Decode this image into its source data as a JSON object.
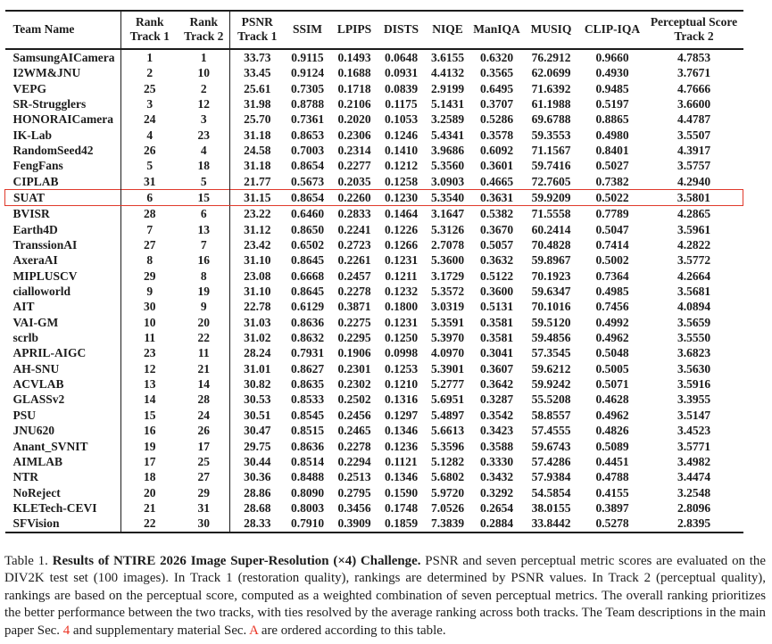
{
  "colors": {
    "highlight_red": "#e03a2c",
    "link_red": "#ea3323",
    "text": "#1c1c1c"
  },
  "table": {
    "header": {
      "team": "Team Name",
      "cols": [
        {
          "line1": "Rank",
          "line2": "Track 1"
        },
        {
          "line1": "Rank",
          "line2": "Track 2"
        },
        {
          "line1": "PSNR",
          "line2": "Track 1"
        },
        {
          "line1": "SSIM",
          "line2": ""
        },
        {
          "line1": "LPIPS",
          "line2": ""
        },
        {
          "line1": "DISTS",
          "line2": ""
        },
        {
          "line1": "NIQE",
          "line2": ""
        },
        {
          "line1": "ManIQA",
          "line2": ""
        },
        {
          "line1": "MUSIQ",
          "line2": ""
        },
        {
          "line1": "CLIP-IQA",
          "line2": ""
        },
        {
          "line1": "Perceptual Score",
          "line2": "Track 2"
        }
      ]
    },
    "rows": [
      {
        "team": "SamsungAICamera",
        "highlight": false,
        "values": [
          "1",
          "1",
          "33.73",
          "0.9115",
          "0.1493",
          "0.0648",
          "3.6155",
          "0.6320",
          "76.2912",
          "0.9660",
          "4.7853"
        ]
      },
      {
        "team": "I2WM&JNU",
        "highlight": false,
        "values": [
          "2",
          "10",
          "33.45",
          "0.9124",
          "0.1688",
          "0.0931",
          "4.4132",
          "0.3565",
          "62.0699",
          "0.4930",
          "3.7671"
        ]
      },
      {
        "team": "VEPG",
        "highlight": false,
        "values": [
          "25",
          "2",
          "25.61",
          "0.7305",
          "0.1718",
          "0.0839",
          "2.9199",
          "0.6495",
          "71.6392",
          "0.9485",
          "4.7666"
        ]
      },
      {
        "team": "SR-Strugglers",
        "highlight": false,
        "values": [
          "3",
          "12",
          "31.98",
          "0.8788",
          "0.2106",
          "0.1175",
          "5.1431",
          "0.3707",
          "61.1988",
          "0.5197",
          "3.6600"
        ]
      },
      {
        "team": "HONORAICamera",
        "highlight": false,
        "values": [
          "24",
          "3",
          "25.70",
          "0.7361",
          "0.2020",
          "0.1053",
          "3.2589",
          "0.5286",
          "69.6788",
          "0.8865",
          "4.4787"
        ]
      },
      {
        "team": "IK-Lab",
        "highlight": false,
        "values": [
          "4",
          "23",
          "31.18",
          "0.8653",
          "0.2306",
          "0.1246",
          "5.4341",
          "0.3578",
          "59.3553",
          "0.4980",
          "3.5507"
        ]
      },
      {
        "team": "RandomSeed42",
        "highlight": false,
        "values": [
          "26",
          "4",
          "24.58",
          "0.7003",
          "0.2314",
          "0.1410",
          "3.9686",
          "0.6092",
          "71.1567",
          "0.8401",
          "4.3917"
        ]
      },
      {
        "team": "FengFans",
        "highlight": false,
        "values": [
          "5",
          "18",
          "31.18",
          "0.8654",
          "0.2277",
          "0.1212",
          "5.3560",
          "0.3601",
          "59.7416",
          "0.5027",
          "3.5757"
        ]
      },
      {
        "team": "CIPLAB",
        "highlight": false,
        "values": [
          "31",
          "5",
          "21.77",
          "0.5673",
          "0.2035",
          "0.1258",
          "3.0903",
          "0.4665",
          "72.7605",
          "0.7382",
          "4.2940"
        ]
      },
      {
        "team": "SUAT",
        "highlight": true,
        "values": [
          "6",
          "15",
          "31.15",
          "0.8654",
          "0.2260",
          "0.1230",
          "5.3540",
          "0.3631",
          "59.9209",
          "0.5022",
          "3.5801"
        ]
      },
      {
        "team": "BVISR",
        "highlight": false,
        "values": [
          "28",
          "6",
          "23.22",
          "0.6460",
          "0.2833",
          "0.1464",
          "3.1647",
          "0.5382",
          "71.5558",
          "0.7789",
          "4.2865"
        ]
      },
      {
        "team": "Earth4D",
        "highlight": false,
        "values": [
          "7",
          "13",
          "31.12",
          "0.8650",
          "0.2241",
          "0.1226",
          "5.3126",
          "0.3670",
          "60.2414",
          "0.5047",
          "3.5961"
        ]
      },
      {
        "team": "TranssionAI",
        "highlight": false,
        "values": [
          "27",
          "7",
          "23.42",
          "0.6502",
          "0.2723",
          "0.1266",
          "2.7078",
          "0.5057",
          "70.4828",
          "0.7414",
          "4.2822"
        ]
      },
      {
        "team": "AxeraAI",
        "highlight": false,
        "values": [
          "8",
          "16",
          "31.10",
          "0.8645",
          "0.2261",
          "0.1231",
          "5.3600",
          "0.3632",
          "59.8967",
          "0.5002",
          "3.5772"
        ]
      },
      {
        "team": "MIPLUSCV",
        "highlight": false,
        "values": [
          "29",
          "8",
          "23.08",
          "0.6668",
          "0.2457",
          "0.1211",
          "3.1729",
          "0.5122",
          "70.1923",
          "0.7364",
          "4.2664"
        ]
      },
      {
        "team": "cialloworld",
        "highlight": false,
        "values": [
          "9",
          "19",
          "31.10",
          "0.8645",
          "0.2278",
          "0.1232",
          "5.3572",
          "0.3600",
          "59.6347",
          "0.4985",
          "3.5681"
        ]
      },
      {
        "team": "AIT",
        "highlight": false,
        "values": [
          "30",
          "9",
          "22.78",
          "0.6129",
          "0.3871",
          "0.1800",
          "3.0319",
          "0.5131",
          "70.1016",
          "0.7456",
          "4.0894"
        ]
      },
      {
        "team": "VAI-GM",
        "highlight": false,
        "values": [
          "10",
          "20",
          "31.03",
          "0.8636",
          "0.2275",
          "0.1231",
          "5.3591",
          "0.3581",
          "59.5120",
          "0.4992",
          "3.5659"
        ]
      },
      {
        "team": "scrlb",
        "highlight": false,
        "values": [
          "11",
          "22",
          "31.02",
          "0.8632",
          "0.2295",
          "0.1250",
          "5.3970",
          "0.3581",
          "59.4856",
          "0.4962",
          "3.5550"
        ]
      },
      {
        "team": "APRIL-AIGC",
        "highlight": false,
        "values": [
          "23",
          "11",
          "28.24",
          "0.7931",
          "0.1906",
          "0.0998",
          "4.0970",
          "0.3041",
          "57.3545",
          "0.5048",
          "3.6823"
        ]
      },
      {
        "team": "AH-SNU",
        "highlight": false,
        "values": [
          "12",
          "21",
          "31.01",
          "0.8627",
          "0.2301",
          "0.1253",
          "5.3901",
          "0.3607",
          "59.6212",
          "0.5005",
          "3.5630"
        ]
      },
      {
        "team": "ACVLAB",
        "highlight": false,
        "values": [
          "13",
          "14",
          "30.82",
          "0.8635",
          "0.2302",
          "0.1210",
          "5.2777",
          "0.3642",
          "59.9242",
          "0.5071",
          "3.5916"
        ]
      },
      {
        "team": "GLASSv2",
        "highlight": false,
        "values": [
          "14",
          "28",
          "30.53",
          "0.8533",
          "0.2502",
          "0.1316",
          "5.6951",
          "0.3287",
          "55.5208",
          "0.4628",
          "3.3955"
        ]
      },
      {
        "team": "PSU",
        "highlight": false,
        "values": [
          "15",
          "24",
          "30.51",
          "0.8545",
          "0.2456",
          "0.1297",
          "5.4897",
          "0.3542",
          "58.8557",
          "0.4962",
          "3.5147"
        ]
      },
      {
        "team": "JNU620",
        "highlight": false,
        "values": [
          "16",
          "26",
          "30.47",
          "0.8515",
          "0.2465",
          "0.1346",
          "5.6613",
          "0.3423",
          "57.4555",
          "0.4826",
          "3.4523"
        ]
      },
      {
        "team": "Anant_SVNIT",
        "highlight": false,
        "values": [
          "19",
          "17",
          "29.75",
          "0.8636",
          "0.2278",
          "0.1236",
          "5.3596",
          "0.3588",
          "59.6743",
          "0.5089",
          "3.5771"
        ]
      },
      {
        "team": "AIMLAB",
        "highlight": false,
        "values": [
          "17",
          "25",
          "30.44",
          "0.8514",
          "0.2294",
          "0.1121",
          "5.1282",
          "0.3330",
          "57.4286",
          "0.4451",
          "3.4982"
        ]
      },
      {
        "team": "NTR",
        "highlight": false,
        "values": [
          "18",
          "27",
          "30.36",
          "0.8488",
          "0.2513",
          "0.1346",
          "5.6802",
          "0.3432",
          "57.9384",
          "0.4788",
          "3.4474"
        ]
      },
      {
        "team": "NoReject",
        "highlight": false,
        "values": [
          "20",
          "29",
          "28.86",
          "0.8090",
          "0.2795",
          "0.1590",
          "5.9720",
          "0.3292",
          "54.5854",
          "0.4155",
          "3.2548"
        ]
      },
      {
        "team": "KLETech-CEVI",
        "highlight": false,
        "values": [
          "21",
          "31",
          "28.68",
          "0.8003",
          "0.3456",
          "0.1748",
          "7.0526",
          "0.2654",
          "38.0155",
          "0.3897",
          "2.8096"
        ]
      },
      {
        "team": "SFVision",
        "highlight": false,
        "values": [
          "22",
          "30",
          "28.33",
          "0.7910",
          "0.3909",
          "0.1859",
          "7.3839",
          "0.2884",
          "33.8442",
          "0.5278",
          "2.8395"
        ]
      }
    ]
  },
  "caption": {
    "segments": [
      {
        "text": "Table 1. ",
        "bold": false,
        "red": false
      },
      {
        "text": "Results of NTIRE 2026 Image Super-Resolution (×4) Challenge.",
        "bold": true,
        "red": false
      },
      {
        "text": " PSNR and seven perceptual metric scores are evaluated on the DIV2K test set (100 images). In Track 1 (restoration quality), rankings are determined by PSNR values. In Track 2 (perceptual quality), rankings are based on the perceptual score, computed as a weighted combination of seven perceptual metrics. The overall ranking prioritizes the better performance between the two tracks, with ties resolved by the average ranking across both tracks. The Team descriptions in the main paper Sec. ",
        "bold": false,
        "red": false
      },
      {
        "text": "4",
        "bold": false,
        "red": true
      },
      {
        "text": " and supplementary material Sec. ",
        "bold": false,
        "red": false
      },
      {
        "text": "A",
        "bold": false,
        "red": true
      },
      {
        "text": " are ordered according to this table.",
        "bold": false,
        "red": false
      }
    ]
  }
}
